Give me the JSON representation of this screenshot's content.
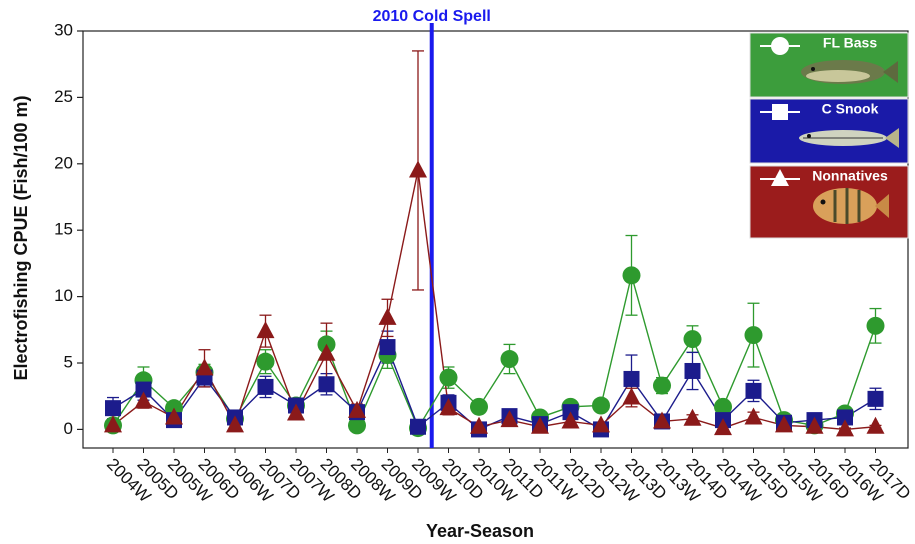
{
  "chart_data": {
    "type": "line",
    "x_label": "Year-Season",
    "y_label": "Electrofishing CPUE (Fish/100 m)",
    "categories": [
      "2004W",
      "2005D",
      "2005W",
      "2006D",
      "2006W",
      "2007D",
      "2007W",
      "2008D",
      "2008W",
      "2009D",
      "2009W",
      "2010D",
      "2010W",
      "2011D",
      "2011W",
      "2012D",
      "2012W",
      "2013D",
      "2013W",
      "2014D",
      "2014W",
      "2015D",
      "2015W",
      "2016D",
      "2016W",
      "2017D"
    ],
    "ylim": [
      -1.4,
      30
    ],
    "yticks": [
      0,
      5,
      10,
      15,
      20,
      25,
      30
    ],
    "legend": "upper right",
    "annotation": {
      "text": "2010 Cold Spell",
      "after": "2009W",
      "color": "#1a1aee"
    },
    "series": [
      {
        "name": "FL Bass",
        "color": "#2e9a2e",
        "marker": "circle",
        "legend_color": "#3c9d3c",
        "values": [
          0.3,
          3.7,
          1.6,
          4.3,
          0.8,
          5.1,
          1.8,
          6.4,
          0.3,
          5.6,
          0.1,
          3.9,
          1.7,
          5.3,
          0.9,
          1.7,
          1.8,
          11.6,
          3.3,
          6.8,
          1.7,
          7.1,
          0.7,
          0.3,
          1.2,
          7.8
        ],
        "errors": [
          0.4,
          1.0,
          0.4,
          0.6,
          0.3,
          0.9,
          0.4,
          1.0,
          0.3,
          1.0,
          0.2,
          0.8,
          0.4,
          1.1,
          0.3,
          0.4,
          0.4,
          3.0,
          0.6,
          1.0,
          0.4,
          2.4,
          0.3,
          0.2,
          0.4,
          1.3
        ]
      },
      {
        "name": "C Snook",
        "color": "#1c1c8c",
        "marker": "square",
        "legend_color": "#1a1aa8",
        "values": [
          1.6,
          3.0,
          0.7,
          3.9,
          0.9,
          3.2,
          1.8,
          3.4,
          1.3,
          6.2,
          0.2,
          2.0,
          0.0,
          1.0,
          0.4,
          1.3,
          0.0,
          3.8,
          0.6,
          4.4,
          0.7,
          2.9,
          0.5,
          0.7,
          0.9,
          2.3
        ],
        "errors": [
          0.8,
          0.8,
          0.3,
          0.7,
          0.3,
          0.8,
          0.4,
          0.8,
          0.6,
          1.2,
          0.2,
          0.6,
          0.1,
          0.4,
          0.2,
          0.5,
          0.1,
          1.8,
          0.3,
          1.4,
          0.3,
          0.8,
          0.2,
          0.3,
          0.4,
          0.8
        ]
      },
      {
        "name": "Nonnatives",
        "color": "#8b1a1a",
        "marker": "triangle",
        "legend_color": "#9b1c1c",
        "values": [
          0.3,
          2.1,
          0.9,
          4.6,
          0.3,
          7.4,
          1.2,
          5.7,
          1.4,
          8.4,
          19.5,
          1.6,
          0.2,
          0.7,
          0.2,
          0.6,
          0.3,
          2.4,
          0.6,
          0.8,
          0.1,
          0.9,
          0.3,
          0.2,
          0.0,
          0.2
        ],
        "errors": [
          0.2,
          0.5,
          0.3,
          1.4,
          0.2,
          1.2,
          0.3,
          2.3,
          0.5,
          1.4,
          9.0,
          0.5,
          0.1,
          0.3,
          0.1,
          0.3,
          0.1,
          0.7,
          0.2,
          0.3,
          0.1,
          0.4,
          0.1,
          0.1,
          0.1,
          0.1
        ]
      }
    ]
  }
}
